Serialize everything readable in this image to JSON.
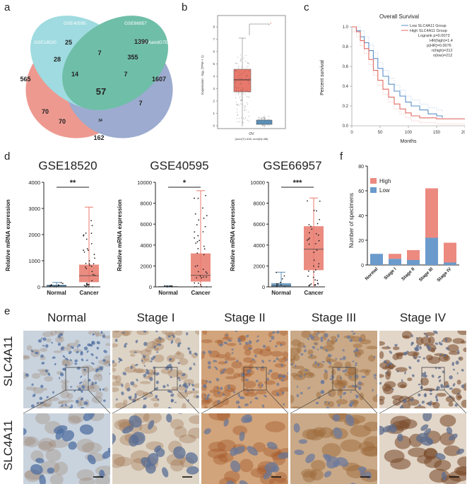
{
  "panels": {
    "a": "a",
    "b": "b",
    "c": "c",
    "d": "d",
    "e": "e",
    "f": "f"
  },
  "venn": {
    "sets": [
      "GSE40595",
      "GSE66957",
      "GSE18520",
      "TCGAandGTEx"
    ],
    "colors": {
      "GSE40595": "#7fcfd6",
      "GSE66957": "#3fa98c",
      "GSE18520": "#e8786b",
      "TCGAandGTEx": "#7b8fbf"
    },
    "counts": [
      "25",
      "1390",
      "28",
      "7",
      "355",
      "565",
      "14",
      "7",
      "1607",
      "57",
      "70",
      "7",
      "70",
      "34",
      "162"
    ]
  },
  "boxplot_b": {
    "ylabel": "Expression - log₂ (TPM + 1)",
    "yticks": [
      "0",
      "1",
      "2",
      "3",
      "4",
      "5",
      "6",
      "7",
      "8"
    ],
    "xlabel": "OV",
    "xsub": "(num(T)=426; num(N)=88)",
    "colors": {
      "tumor": "#e8786b",
      "normal": "#5b8fb8"
    }
  },
  "survival_c": {
    "title": "Overall Survival",
    "ylabel": "Percent survival",
    "xlabel": "Months",
    "xticks": [
      "0",
      "50",
      "100",
      "150",
      "200"
    ],
    "yticks": [
      "0.0",
      "0.2",
      "0.4",
      "0.6",
      "0.8",
      "1.0"
    ],
    "legend": [
      "Low SLC4A11 Group",
      "High SLC4A11 Group"
    ],
    "stats": [
      "Logrank p=0.0073",
      "HR(high)=1.4",
      "p(HR)=0.0076",
      "n(high)=212",
      "n(low)=212"
    ],
    "colors": {
      "low": "#5b8fc7",
      "high": "#e06b63"
    }
  },
  "boxplots_d": [
    {
      "title": "GSE18520",
      "ylabel": "Relative mRNA expression",
      "yticks": [
        "0",
        "1000",
        "2000",
        "3000",
        "4000"
      ],
      "ymax": 4000,
      "sig": "**",
      "groups": [
        {
          "name": "Normal",
          "q1": 10,
          "median": 40,
          "q3": 80,
          "min": 0,
          "max": 170
        },
        {
          "name": "Cancer",
          "q1": 180,
          "median": 430,
          "q3": 850,
          "min": 0,
          "max": 3050
        }
      ]
    },
    {
      "title": "GSE40595",
      "ylabel": "Relative mRNA expression",
      "yticks": [
        "0",
        "2000",
        "4000",
        "6000",
        "8000",
        "10000"
      ],
      "ymax": 10000,
      "sig": "*",
      "groups": [
        {
          "name": "Normal",
          "q1": 5,
          "median": 20,
          "q3": 60,
          "min": 0,
          "max": 100
        },
        {
          "name": "Cancer",
          "q1": 500,
          "median": 1100,
          "q3": 3200,
          "min": 0,
          "max": 9200
        }
      ]
    },
    {
      "title": "GSE66957",
      "ylabel": "Relative mRNA expression",
      "yticks": [
        "0",
        "2000",
        "4000",
        "6000",
        "8000",
        "10000"
      ],
      "ymax": 10000,
      "sig": "***",
      "groups": [
        {
          "name": "Normal",
          "q1": 30,
          "median": 120,
          "q3": 350,
          "min": 0,
          "max": 1400
        },
        {
          "name": "Cancer",
          "q1": 1600,
          "median": 3600,
          "q3": 5800,
          "min": 0,
          "max": 8500
        }
      ]
    }
  ],
  "chart_data": {
    "type": "bar",
    "categories": [
      "Normal",
      "Stage I",
      "Stage II",
      "Stage III",
      "Stage IV"
    ],
    "series": [
      {
        "name": "Low",
        "values": [
          9,
          5,
          4,
          22,
          2
        ]
      },
      {
        "name": "High",
        "values": [
          0,
          4,
          8,
          40,
          16
        ]
      }
    ],
    "ylabel": "Number of specimens",
    "yticks": [
      "0",
      "20",
      "40",
      "60",
      "80"
    ],
    "ylim": [
      0,
      80
    ],
    "legend": [
      "High",
      "Low"
    ],
    "colors": {
      "High": "#ec8a80",
      "Low": "#6b9bcc"
    }
  },
  "ihc": {
    "row_label": "SLC4A11",
    "stages": [
      "Normal",
      "Stage I",
      "Stage II",
      "Stage III",
      "Stage IV"
    ]
  }
}
